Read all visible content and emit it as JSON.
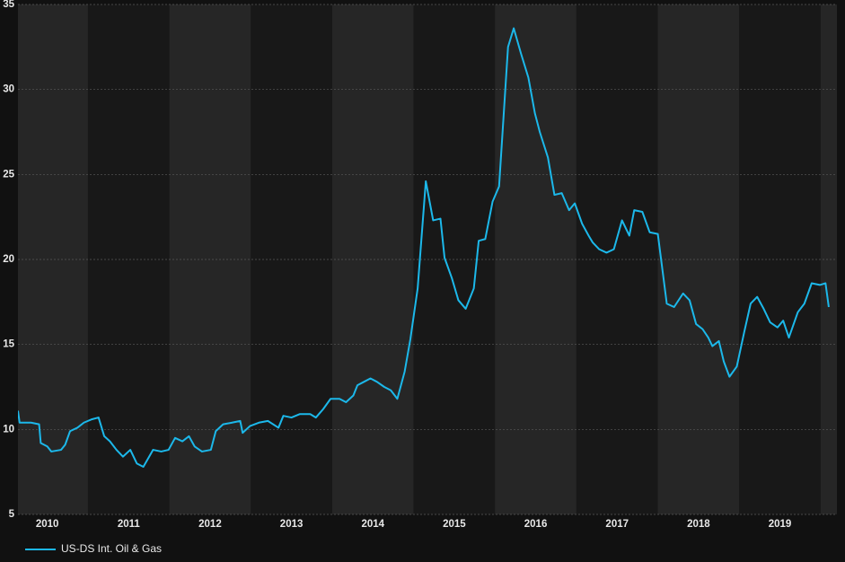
{
  "chart_data": {
    "type": "line",
    "x": [
      2010.14,
      2010.16,
      2010.3,
      2010.4,
      2010.42,
      2010.5,
      2010.55,
      2010.67,
      2010.72,
      2010.78,
      2010.87,
      2010.95,
      2011.05,
      2011.13,
      2011.2,
      2011.27,
      2011.35,
      2011.43,
      2011.52,
      2011.6,
      2011.68,
      2011.8,
      2011.9,
      2011.99,
      2012.07,
      2012.16,
      2012.24,
      2012.31,
      2012.4,
      2012.51,
      2012.57,
      2012.66,
      2012.77,
      2012.87,
      2012.9,
      2012.99,
      2013.1,
      2013.21,
      2013.34,
      2013.4,
      2013.5,
      2013.6,
      2013.73,
      2013.8,
      2013.89,
      2013.98,
      2014.09,
      2014.17,
      2014.26,
      2014.31,
      2014.39,
      2014.47,
      2014.55,
      2014.64,
      2014.72,
      2014.8,
      2014.89,
      2014.96,
      2015.05,
      2015.15,
      2015.24,
      2015.33,
      2015.38,
      2015.47,
      2015.55,
      2015.64,
      2015.74,
      2015.8,
      2015.88,
      2015.97,
      2016.05,
      2016.16,
      2016.23,
      2016.32,
      2016.41,
      2016.49,
      2016.55,
      2016.65,
      2016.73,
      2016.82,
      2016.91,
      2016.98,
      2017.07,
      2017.15,
      2017.2,
      2017.28,
      2017.37,
      2017.46,
      2017.56,
      2017.65,
      2017.71,
      2017.81,
      2017.9,
      2018.0,
      2018.11,
      2018.2,
      2018.31,
      2018.39,
      2018.47,
      2018.55,
      2018.62,
      2018.67,
      2018.75,
      2018.81,
      2018.88,
      2018.97,
      2019.06,
      2019.14,
      2019.22,
      2019.3,
      2019.38,
      2019.47,
      2019.54,
      2019.61,
      2019.72,
      2019.8,
      2019.89,
      2019.99,
      2020.06,
      2020.1
    ],
    "series": [
      {
        "name": "US-DS Int. Oil & Gas",
        "color": "#1cb8ea",
        "values": [
          11.1,
          10.4,
          10.4,
          10.3,
          9.2,
          9.0,
          8.7,
          8.8,
          9.1,
          9.9,
          10.1,
          10.4,
          10.6,
          10.7,
          9.6,
          9.3,
          8.8,
          8.4,
          8.8,
          8.0,
          7.8,
          8.8,
          8.7,
          8.8,
          9.5,
          9.3,
          9.6,
          9.0,
          8.7,
          8.8,
          9.9,
          10.3,
          10.4,
          10.5,
          9.8,
          10.2,
          10.4,
          10.5,
          10.1,
          10.8,
          10.7,
          10.9,
          10.9,
          10.7,
          11.2,
          11.8,
          11.8,
          11.6,
          12.0,
          12.6,
          12.8,
          13.0,
          12.8,
          12.5,
          12.3,
          11.8,
          13.4,
          15.3,
          18.3,
          24.6,
          22.3,
          22.4,
          20.1,
          18.9,
          17.6,
          17.1,
          18.3,
          21.1,
          21.2,
          23.4,
          24.3,
          32.5,
          33.6,
          32.1,
          30.7,
          28.6,
          27.5,
          26.0,
          23.8,
          23.9,
          22.9,
          23.3,
          22.1,
          21.4,
          21.0,
          20.6,
          20.4,
          20.6,
          22.3,
          21.4,
          22.9,
          22.8,
          21.6,
          21.5,
          17.4,
          17.2,
          18.0,
          17.6,
          16.2,
          15.9,
          15.4,
          14.9,
          15.2,
          14.0,
          13.1,
          13.7,
          15.7,
          17.4,
          17.8,
          17.1,
          16.3,
          16.0,
          16.4,
          15.4,
          16.9,
          17.4,
          18.6,
          18.5,
          18.6,
          17.2
        ]
      }
    ],
    "xlim": [
      2010.14,
      2020.2
    ],
    "xticks": [
      {
        "value": 2010.5,
        "label": "2010"
      },
      {
        "value": 2011.5,
        "label": "2011"
      },
      {
        "value": 2012.5,
        "label": "2012"
      },
      {
        "value": 2013.5,
        "label": "2013"
      },
      {
        "value": 2014.5,
        "label": "2014"
      },
      {
        "value": 2015.5,
        "label": "2015"
      },
      {
        "value": 2016.5,
        "label": "2016"
      },
      {
        "value": 2017.5,
        "label": "2017"
      },
      {
        "value": 2018.5,
        "label": "2018"
      },
      {
        "value": 2019.5,
        "label": "2019"
      }
    ],
    "ylim": [
      5,
      35
    ],
    "yticks": [
      5,
      10,
      15,
      20,
      25,
      30,
      35
    ],
    "grid": true,
    "legend": "bottom-left",
    "band_colors": [
      "#262626",
      "#181818"
    ]
  }
}
